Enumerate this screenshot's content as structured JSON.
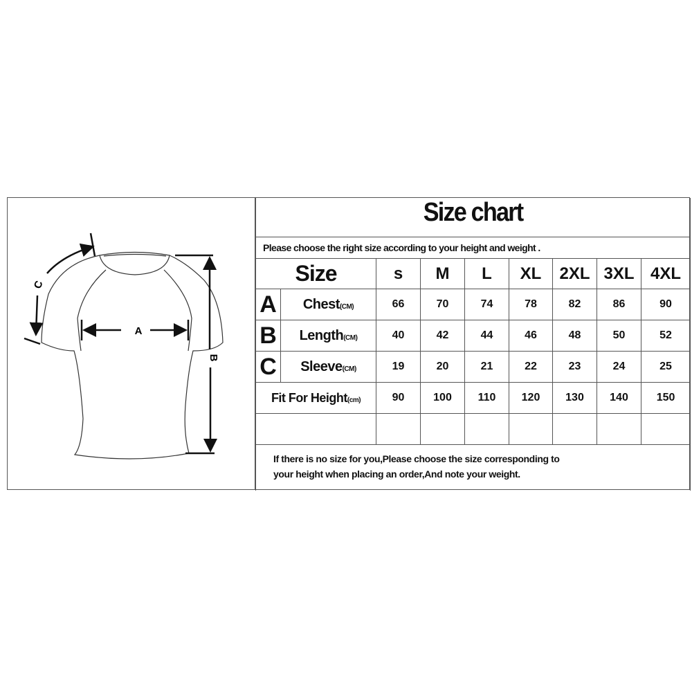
{
  "title": "Size chart",
  "subtitle": "Please choose the right size according to your height and weight .",
  "header": {
    "label": "Size",
    "sizes": [
      "s",
      "M",
      "L",
      "XL",
      "2XL",
      "3XL",
      "4XL"
    ]
  },
  "rows": [
    {
      "letter": "A",
      "label": "Chest",
      "unit": "(CM)",
      "values": [
        "66",
        "70",
        "74",
        "78",
        "82",
        "86",
        "90"
      ]
    },
    {
      "letter": "B",
      "label": "Length",
      "unit": "(CM)",
      "values": [
        "40",
        "42",
        "44",
        "46",
        "48",
        "50",
        "52"
      ]
    },
    {
      "letter": "C",
      "label": "Sleeve",
      "unit": "(CM)",
      "values": [
        "19",
        "20",
        "21",
        "22",
        "23",
        "24",
        "25"
      ]
    },
    {
      "letter": "",
      "label": "Fit For Height",
      "unit": "(cm)",
      "values": [
        "90",
        "100",
        "110",
        "120",
        "130",
        "140",
        "150"
      ]
    }
  ],
  "note_line1": "If there is no size for you,Please choose the size corresponding to",
  "note_line2": "your height when placing an order,And note your weight.",
  "diagram": {
    "a": "A",
    "b": "B",
    "c": "C"
  }
}
